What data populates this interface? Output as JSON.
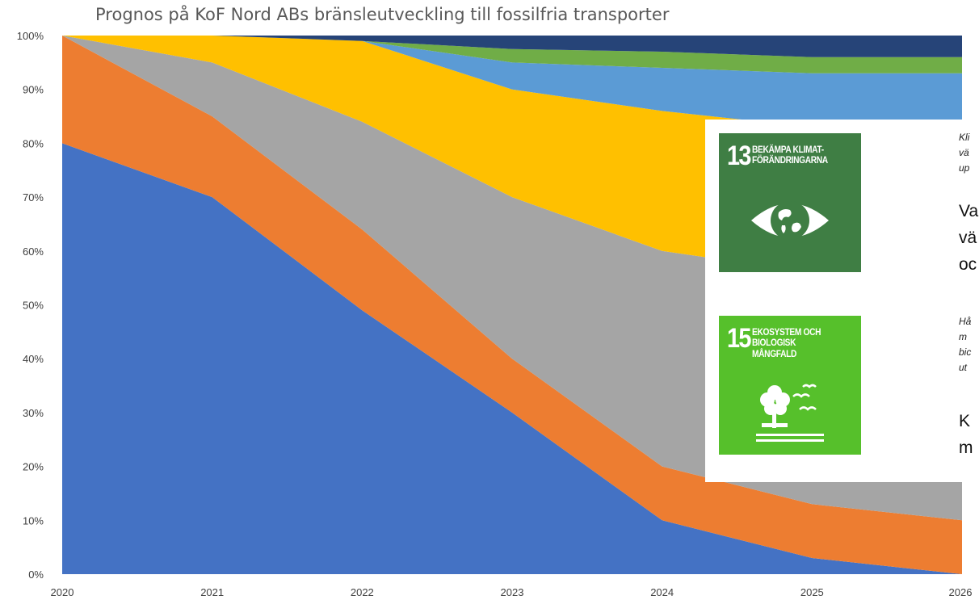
{
  "chart_data": {
    "type": "area",
    "stacked": true,
    "title": "Prognos på KoF Nord ABs bränsleutveckling till fossilfria transporter",
    "x": [
      "2020",
      "2021",
      "2022",
      "2023",
      "2024",
      "2025",
      "2026"
    ],
    "ylim": [
      0,
      1
    ],
    "y_ticks": [
      "0%",
      "10%",
      "20%",
      "30%",
      "40%",
      "50%",
      "60%",
      "70%",
      "80%",
      "90%",
      "100%"
    ],
    "grid": false,
    "series": [
      {
        "color": "#4472c4",
        "values": [
          0.8,
          0.7,
          0.49,
          0.3,
          0.1,
          0.03,
          0.0
        ]
      },
      {
        "color": "#ed7d31",
        "values": [
          0.2,
          0.15,
          0.15,
          0.1,
          0.1,
          0.1,
          0.1
        ]
      },
      {
        "color": "#a5a5a5",
        "values": [
          0.0,
          0.1,
          0.2,
          0.3,
          0.4,
          0.43,
          0.45
        ]
      },
      {
        "color": "#ffc000",
        "values": [
          0.0,
          0.05,
          0.15,
          0.2,
          0.26,
          0.27,
          0.25
        ]
      },
      {
        "color": "#5b9bd5",
        "values": [
          0.0,
          0.0,
          0.0,
          0.05,
          0.08,
          0.1,
          0.13
        ]
      },
      {
        "color": "#70ad47",
        "values": [
          0.0,
          0.0,
          0.0,
          0.025,
          0.03,
          0.03,
          0.03
        ]
      },
      {
        "color": "#264478",
        "values": [
          0.0,
          0.0,
          0.01,
          0.025,
          0.03,
          0.04,
          0.04
        ]
      }
    ]
  },
  "overlay": {
    "sdg13": {
      "number": "13",
      "text": "BEKÄMPA KLIMAT-\nFÖRÄNDRINGARNA",
      "color": "#3f7e44",
      "icon": "earth-eye-icon"
    },
    "sdg15": {
      "number": "15",
      "text": "EKOSYSTEM OCH\nBIOLOGISK\nMÅNGFALD",
      "color": "#56c02b",
      "icon": "tree-birds-icon"
    },
    "text_13_small": "Kli\nvä\nup",
    "text_13_large": "Va\nvä\noc",
    "text_15_small": "Hå\nm\nbic\nut",
    "text_15_large": "K\nm"
  }
}
